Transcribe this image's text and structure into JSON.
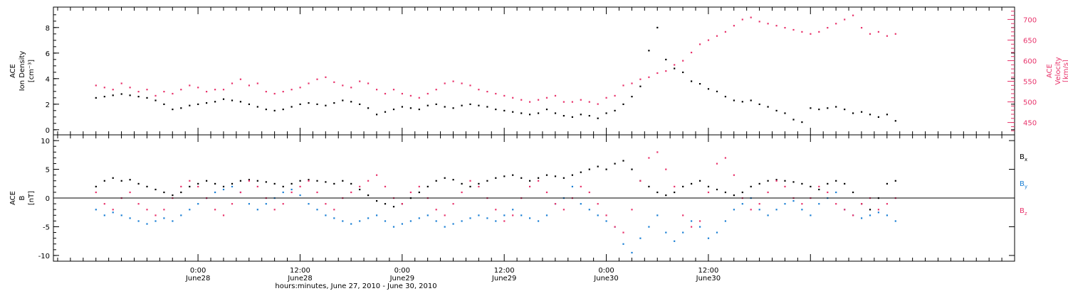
{
  "colors": {
    "black": "#000000",
    "blue": "#1a7fd4",
    "red": "#e8336b"
  },
  "chart_data": [
    {
      "type": "scatter",
      "panel": "top",
      "ylabel_lines": [
        "ACE",
        "Ion Density",
        "[cm⁻³]"
      ],
      "ylabel_right_lines": [
        "ACE",
        "Velocity",
        "[km/s]"
      ],
      "ylim": [
        -0.4,
        9.6
      ],
      "ylim_right": [
        420,
        730
      ],
      "yticks": [
        "0",
        "2",
        "4",
        "6",
        "8"
      ],
      "yticks_right": [
        "450",
        "500",
        "550",
        "600",
        "650",
        "700"
      ],
      "series": [
        {
          "axis": "left",
          "color": "#000000",
          "x": [
            -24,
            -22,
            -20,
            -18,
            -16,
            -14,
            -12,
            -10,
            -8,
            -6,
            -4,
            -2,
            0,
            2,
            4,
            6,
            8,
            10,
            12,
            14,
            16,
            18,
            20,
            22,
            24,
            26,
            28,
            30,
            32,
            34,
            36,
            38,
            40,
            42,
            44,
            46,
            48,
            50,
            52,
            54,
            56,
            58,
            60,
            62,
            64,
            66,
            68,
            70,
            72,
            74,
            76,
            78,
            80,
            82,
            84,
            86,
            88,
            90,
            92,
            94,
            96,
            98,
            100,
            102,
            104,
            106,
            108,
            110,
            112,
            114,
            116,
            118,
            120,
            122,
            124,
            126,
            128,
            130,
            132,
            134,
            136,
            138,
            140,
            142,
            144,
            146,
            148,
            150,
            152,
            154,
            156,
            158,
            160,
            162,
            164
          ],
          "y": [
            2.5,
            2.6,
            2.7,
            2.8,
            2.7,
            2.6,
            2.5,
            2.3,
            2.0,
            1.6,
            1.7,
            1.9,
            2.0,
            2.1,
            2.2,
            2.4,
            2.3,
            2.2,
            2.0,
            1.8,
            1.6,
            1.5,
            1.6,
            1.8,
            2.0,
            2.1,
            2.0,
            1.9,
            2.1,
            2.3,
            2.2,
            2.0,
            1.7,
            1.2,
            1.4,
            1.6,
            1.8,
            1.7,
            1.6,
            1.9,
            2.0,
            1.8,
            1.7,
            1.9,
            2.0,
            1.9,
            1.8,
            1.6,
            1.5,
            1.4,
            1.3,
            1.2,
            1.3,
            1.6,
            1.3,
            1.1,
            1.0,
            1.2,
            1.1,
            0.9,
            1.3,
            1.5,
            2.0,
            2.6,
            3.4,
            6.2,
            8.0,
            5.5,
            4.8,
            4.5,
            3.8,
            3.6,
            3.2,
            3.0,
            2.6,
            2.3,
            2.2,
            2.3,
            2.0,
            1.8,
            1.5,
            1.3,
            0.8,
            0.6,
            1.7,
            1.6,
            1.7,
            1.8,
            1.6,
            1.3,
            1.4,
            1.2,
            1.0,
            1.2,
            0.7
          ]
        },
        {
          "axis": "right",
          "color": "#e8336b",
          "x": [
            -24,
            -22,
            -20,
            -18,
            -16,
            -14,
            -12,
            -10,
            -8,
            -6,
            -4,
            -2,
            0,
            2,
            4,
            6,
            8,
            10,
            12,
            14,
            16,
            18,
            20,
            22,
            24,
            26,
            28,
            30,
            32,
            34,
            36,
            38,
            40,
            42,
            44,
            46,
            48,
            50,
            52,
            54,
            56,
            58,
            60,
            62,
            64,
            66,
            68,
            70,
            72,
            74,
            76,
            78,
            80,
            82,
            84,
            86,
            88,
            90,
            92,
            94,
            96,
            98,
            100,
            102,
            104,
            106,
            108,
            110,
            112,
            114,
            116,
            118,
            120,
            122,
            124,
            126,
            128,
            130,
            132,
            134,
            136,
            138,
            140,
            142,
            144,
            146,
            148,
            150,
            152,
            154,
            156,
            158,
            160,
            162,
            164
          ],
          "y": [
            540,
            535,
            530,
            545,
            535,
            525,
            530,
            515,
            525,
            520,
            530,
            540,
            535,
            525,
            530,
            530,
            545,
            555,
            540,
            545,
            525,
            520,
            525,
            530,
            535,
            545,
            555,
            560,
            548,
            540,
            535,
            550,
            545,
            530,
            520,
            530,
            520,
            515,
            510,
            520,
            530,
            545,
            550,
            545,
            540,
            530,
            525,
            520,
            515,
            510,
            505,
            500,
            505,
            510,
            515,
            500,
            500,
            505,
            500,
            495,
            510,
            515,
            540,
            545,
            555,
            560,
            570,
            575,
            590,
            600,
            620,
            640,
            650,
            660,
            670,
            685,
            700,
            705,
            695,
            690,
            685,
            680,
            675,
            670,
            665,
            670,
            680,
            690,
            700,
            710,
            680,
            665,
            670,
            660,
            665
          ]
        }
      ]
    },
    {
      "type": "scatter",
      "panel": "bottom",
      "ylabel_lines": [
        "ACE",
        "B",
        "[nT]"
      ],
      "ylim": [
        -11,
        11
      ],
      "yticks": [
        "-10",
        "-5",
        "0",
        "5",
        "10"
      ],
      "series": [
        {
          "name": "Bx",
          "name_base": "B",
          "name_sub": "x",
          "color": "#000000",
          "x": [
            -24,
            -22,
            -20,
            -18,
            -16,
            -14,
            -12,
            -10,
            -8,
            -6,
            -4,
            -2,
            0,
            2,
            4,
            6,
            8,
            10,
            12,
            14,
            16,
            18,
            20,
            22,
            24,
            26,
            28,
            30,
            32,
            34,
            36,
            38,
            40,
            42,
            44,
            46,
            48,
            50,
            52,
            54,
            56,
            58,
            60,
            62,
            64,
            66,
            68,
            70,
            72,
            74,
            76,
            78,
            80,
            82,
            84,
            86,
            88,
            90,
            92,
            94,
            96,
            98,
            100,
            102,
            104,
            106,
            108,
            110,
            112,
            114,
            116,
            118,
            120,
            122,
            124,
            126,
            128,
            130,
            132,
            134,
            136,
            138,
            140,
            142,
            144,
            146,
            148,
            150,
            152,
            154,
            156,
            158,
            160,
            162,
            164
          ],
          "y": [
            2,
            3,
            3.5,
            3,
            3.2,
            2.5,
            2,
            1.5,
            1,
            0.5,
            1,
            2,
            2.5,
            3,
            2.5,
            2,
            2.5,
            3,
            3.2,
            3,
            2.8,
            2.5,
            2,
            2.5,
            3,
            3.2,
            3,
            2.8,
            2.5,
            3,
            2.5,
            1.5,
            0.5,
            -0.5,
            -1,
            -1.5,
            -1,
            0,
            1,
            2,
            3,
            3.5,
            3.2,
            2.5,
            2,
            2.5,
            3,
            3.5,
            3.8,
            4,
            3.5,
            3,
            3.5,
            4,
            3.8,
            3.5,
            4,
            4.5,
            5,
            5.5,
            5,
            6,
            6.5,
            5,
            3,
            2,
            1,
            0.5,
            1,
            2,
            2.5,
            3,
            2,
            1.5,
            1,
            0.5,
            1,
            2,
            2.5,
            3,
            3.2,
            3,
            2.8,
            2.5,
            2,
            1.5,
            2.5,
            3,
            2.5,
            1,
            -1,
            -2,
            0,
            2.5,
            3
          ]
        },
        {
          "name": "By",
          "name_base": "B",
          "name_sub": "y",
          "color": "#1a7fd4",
          "x": [
            -24,
            -22,
            -20,
            -18,
            -16,
            -14,
            -12,
            -10,
            -8,
            -6,
            -4,
            -2,
            0,
            2,
            4,
            6,
            8,
            10,
            12,
            14,
            16,
            18,
            20,
            22,
            24,
            26,
            28,
            30,
            32,
            34,
            36,
            38,
            40,
            42,
            44,
            46,
            48,
            50,
            52,
            54,
            56,
            58,
            60,
            62,
            64,
            66,
            68,
            70,
            72,
            74,
            76,
            78,
            80,
            82,
            84,
            86,
            88,
            90,
            92,
            94,
            96,
            98,
            100,
            102,
            104,
            106,
            108,
            110,
            112,
            114,
            116,
            118,
            120,
            122,
            124,
            126,
            128,
            130,
            132,
            134,
            136,
            138,
            140,
            142,
            144,
            146,
            148,
            150,
            152,
            154,
            156,
            158,
            160,
            162,
            164
          ],
          "y": [
            -2,
            -3,
            -2.5,
            -3,
            -3.5,
            -4,
            -4.5,
            -4,
            -3.5,
            -4,
            -3,
            -2,
            -1,
            0,
            1,
            1.5,
            2,
            1,
            -1,
            -2,
            -1,
            0,
            1,
            1.5,
            0.5,
            -1,
            -2,
            -3,
            -3.5,
            -4,
            -4.5,
            -4,
            -3.5,
            -3,
            -4,
            -5,
            -4.5,
            -4,
            -3.5,
            -3,
            -4,
            -5,
            -4.5,
            -4,
            -3.5,
            -3,
            -3.5,
            -4,
            -3,
            -2,
            -3,
            -3.5,
            -4,
            -3,
            -1,
            0,
            2,
            -1,
            -2,
            -3,
            -4,
            -5,
            -8,
            -9.5,
            -7,
            -5,
            -3,
            -6,
            -7.5,
            -6,
            -4,
            -5,
            -7,
            -6,
            -4,
            -2,
            -1,
            0,
            -2,
            -3,
            -2,
            -1,
            -0.5,
            -2,
            -3,
            -1,
            0,
            1,
            -2,
            -3,
            -3.5,
            -3,
            -2.5,
            -3,
            -4
          ]
        },
        {
          "name": "Bz",
          "name_base": "B",
          "name_sub": "z",
          "color": "#e8336b",
          "x": [
            -24,
            -22,
            -20,
            -18,
            -16,
            -14,
            -12,
            -10,
            -8,
            -6,
            -4,
            -2,
            0,
            2,
            4,
            6,
            8,
            10,
            12,
            14,
            16,
            18,
            20,
            22,
            24,
            26,
            28,
            30,
            32,
            34,
            36,
            38,
            40,
            42,
            44,
            46,
            48,
            50,
            52,
            54,
            56,
            58,
            60,
            62,
            64,
            66,
            68,
            70,
            72,
            74,
            76,
            78,
            80,
            82,
            84,
            86,
            88,
            90,
            92,
            94,
            96,
            98,
            100,
            102,
            104,
            106,
            108,
            110,
            112,
            114,
            116,
            118,
            120,
            122,
            124,
            126,
            128,
            130,
            132,
            134,
            136,
            138,
            140,
            142,
            144,
            146,
            148,
            150,
            152,
            154,
            156,
            158,
            160,
            162,
            164
          ],
          "y": [
            1,
            -1,
            -2,
            0,
            1,
            -1,
            -2,
            -3,
            -2,
            0,
            2,
            3,
            2,
            0,
            -2,
            -3,
            -1,
            1,
            3,
            2,
            0,
            -2,
            -1,
            1,
            2,
            3,
            1,
            -1,
            -2,
            0,
            1,
            2,
            3,
            4,
            2,
            0,
            -1,
            1,
            2,
            0,
            -2,
            -3,
            -1,
            1,
            3,
            2,
            0,
            -2,
            -4,
            -3,
            0,
            2,
            3,
            1,
            -1,
            -2,
            0,
            2,
            1,
            -1,
            -3,
            -5,
            -6,
            -2,
            3,
            7,
            8,
            5,
            2,
            -3,
            -5,
            -4,
            1,
            6,
            7,
            4,
            0,
            -2,
            -1,
            1,
            3,
            2,
            0,
            -1,
            0,
            2,
            1,
            -1,
            -2,
            -3,
            -1,
            0,
            -2,
            -1,
            0
          ]
        }
      ]
    }
  ],
  "x_axis": {
    "xlim": [
      -34,
      192
    ],
    "major_ticks": [
      0,
      24,
      48,
      72,
      96,
      120,
      144
    ],
    "minor_step": 3,
    "tick_labels": [
      {
        "x": 0,
        "time": "0:00",
        "day": "June28"
      },
      {
        "x": 24,
        "time": "12:00",
        "day": "June28"
      },
      {
        "x": 48,
        "time": "0:00",
        "day": "June29"
      },
      {
        "x": 72,
        "time": "12:00",
        "day": "June29"
      },
      {
        "x": 96,
        "time": "0:00",
        "day": "June30"
      },
      {
        "x": 120,
        "time": "12:00",
        "day": "June30"
      }
    ],
    "title": "hours:minutes, June 27, 2010 - June 30, 2010"
  }
}
